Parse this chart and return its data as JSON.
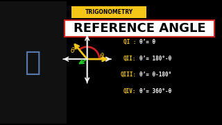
{
  "bg_color": "#000000",
  "title_box_color": "#f5c518",
  "title_text": "TRIGONOMETRY",
  "title_text_color": "#000000",
  "main_title": "REFERENCE ANGLE",
  "main_title_color": "#ffffff",
  "main_title_bg": "#ffffff",
  "main_title_text_color": "#000000",
  "axis_color": "#ffffff",
  "angle_arc_color": "#cc2222",
  "ref_arrow_color": "#f5c518",
  "ref_arrow2_color": "#22aa22",
  "theta_label_color": "#f5c518",
  "theta_prime_label_color": "#f5c518",
  "qi_label": "QI :",
  "qi_formula": "θ’= θ",
  "qii_label": "QII:",
  "qii_formula": "θ’= 180°-θ",
  "qiii_label": "QIII:",
  "qiii_formula": "θ’= θ-180°",
  "qiv_label": "QIV:",
  "qiv_formula": "θ’= 360°-θ",
  "quadrant_label_color": "#f5c518",
  "formula_color": "#ffffff",
  "person_placeholder": true
}
